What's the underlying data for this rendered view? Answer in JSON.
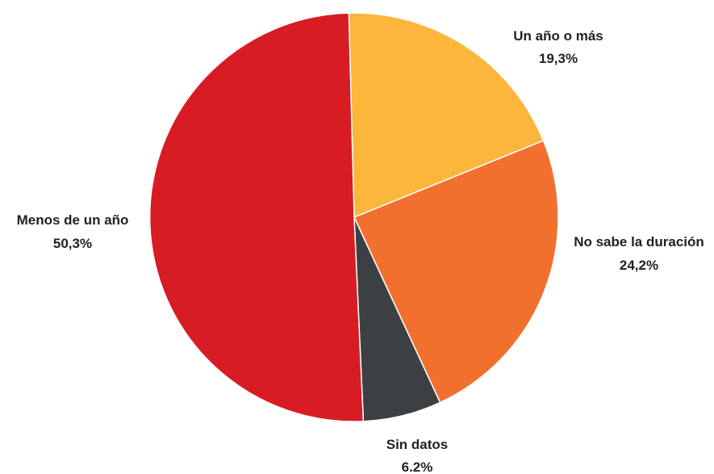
{
  "chart_data": {
    "type": "pie",
    "title": "",
    "start_angle_deg": -1.5,
    "direction": "clockwise",
    "slices": [
      {
        "name": "Un año o más",
        "value": 19.3,
        "value_label": "19,3%",
        "color": "#FBB63B"
      },
      {
        "name": "No sabe la duración",
        "value": 24.2,
        "value_label": "24,2%",
        "color": "#F2702E"
      },
      {
        "name": "Sin datos",
        "value": 6.2,
        "value_label": "6.2%",
        "color": "#3D4042"
      },
      {
        "name": "Menos de un año",
        "value": 50.3,
        "value_label": "50,3%",
        "color": "#D81C24"
      }
    ]
  }
}
